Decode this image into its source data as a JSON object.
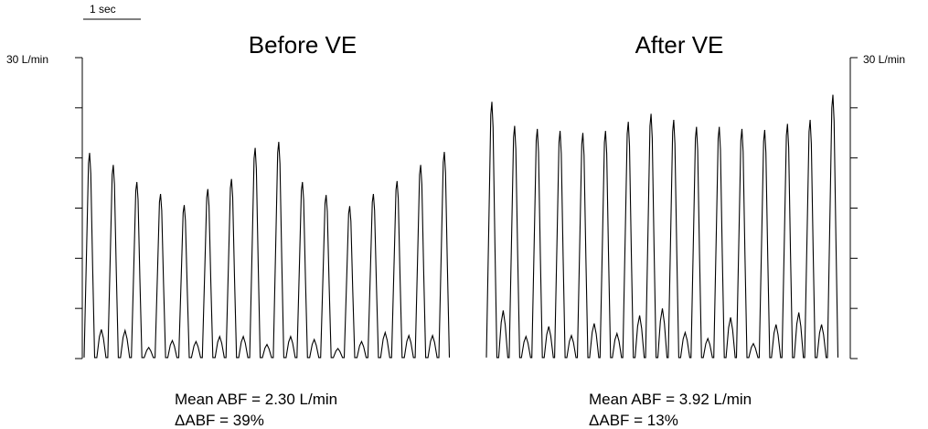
{
  "scale_bar": {
    "label": "1 sec"
  },
  "chart_data": [
    {
      "type": "line",
      "title": "Before VE",
      "ylabel": "30 L/min",
      "ylim": [
        0,
        30
      ],
      "y_ticks": 6,
      "unit": "L/min",
      "peaks": [
        20.5,
        19.3,
        17.6,
        16.4,
        15.3,
        16.9,
        17.9,
        21.0,
        21.6,
        17.6,
        16.3,
        15.2,
        16.4,
        17.7,
        19.3,
        20.6
      ],
      "minor_peaks": [
        2.9,
        2.8,
        1.1,
        1.8,
        1.7,
        2.2,
        2.2,
        1.4,
        2.2,
        1.9,
        1.0,
        1.7,
        2.6,
        2.3,
        2.3
      ],
      "stats": {
        "mean": "Mean ABF  = 2.30 L/min",
        "delta": "ΔABF = 39%"
      }
    },
    {
      "type": "line",
      "title": "After VE",
      "ylabel": "30 L/min",
      "ylim": [
        0,
        30
      ],
      "y_ticks": 6,
      "unit": "L/min",
      "peaks": [
        25.6,
        23.2,
        22.9,
        22.7,
        22.5,
        22.7,
        23.6,
        24.4,
        23.8,
        23.1,
        23.1,
        22.9,
        22.8,
        23.4,
        23.8,
        26.3
      ],
      "minor_peaks": [
        4.8,
        2.2,
        3.2,
        2.3,
        3.5,
        2.5,
        4.3,
        5.0,
        2.6,
        2.0,
        4.1,
        1.5,
        3.4,
        4.6,
        3.4
      ],
      "stats": {
        "mean": "Mean ABF  = 3.92 L/min",
        "delta": "ΔABF = 13%"
      }
    }
  ]
}
